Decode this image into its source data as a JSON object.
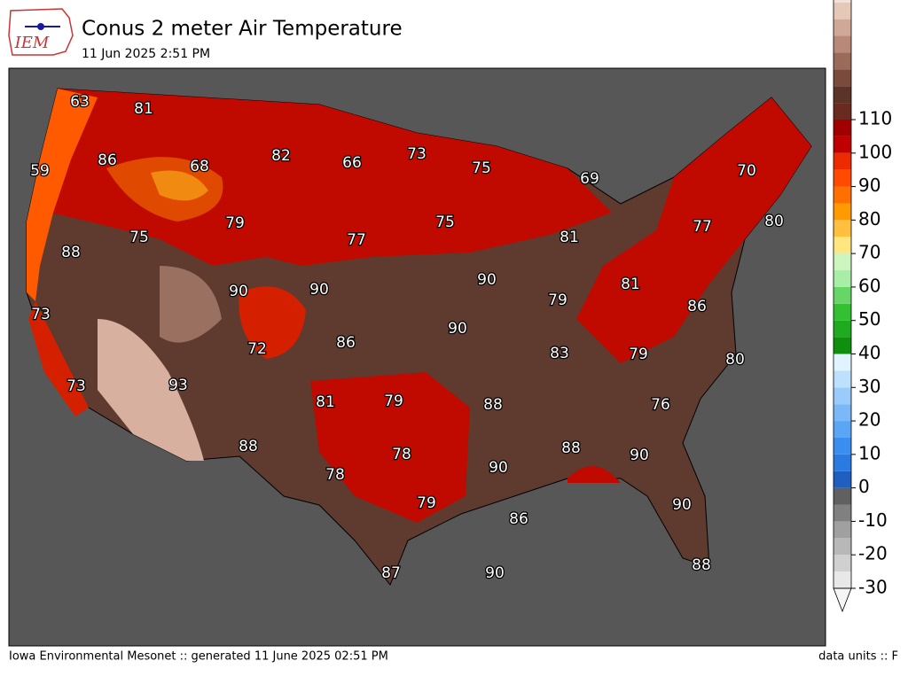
{
  "header": {
    "logo_text": "IEM",
    "title": "Conus 2 meter Air Temperature",
    "subtitle": "11 Jun 2025 2:51 PM"
  },
  "map": {
    "labels": [
      63,
      81,
      86,
      59,
      68,
      82,
      66,
      73,
      75,
      69,
      70,
      79,
      75,
      77,
      75,
      81,
      77,
      80,
      88,
      90,
      90,
      90,
      79,
      81,
      86,
      73,
      72,
      86,
      90,
      83,
      79,
      80,
      73,
      93,
      81,
      79,
      88,
      76,
      88,
      78,
      90,
      88,
      90,
      78,
      79,
      86,
      90,
      87,
      90,
      88
    ]
  },
  "colorbar": {
    "ticks": [
      -30,
      -20,
      -10,
      0,
      10,
      20,
      30,
      40,
      50,
      60,
      70,
      80,
      90,
      100,
      110
    ]
  },
  "footer": {
    "left": "Iowa Environmental Mesonet :: generated 11 June 2025 02:51 PM",
    "right": "data units :: F"
  }
}
